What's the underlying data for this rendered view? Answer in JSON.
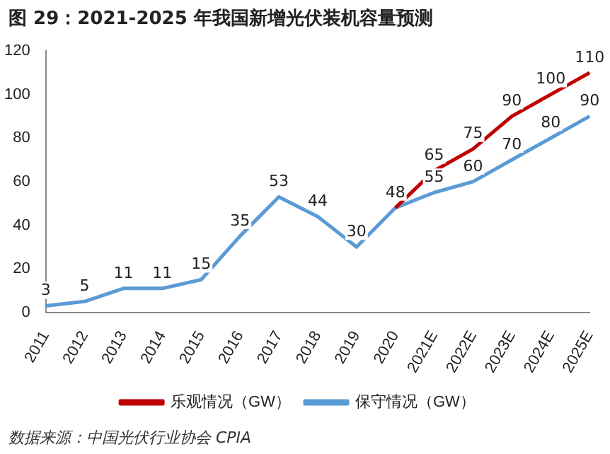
{
  "chart_data": {
    "type": "line",
    "title": "图 29：2021-2025 年我国新增光伏装机容量预测",
    "categories": [
      "2011",
      "2012",
      "2013",
      "2014",
      "2015",
      "2016",
      "2017",
      "2018",
      "2019",
      "2020",
      "2021E",
      "2022E",
      "2023E",
      "2024E",
      "2025E"
    ],
    "series": [
      {
        "name": "乐观情况（GW）",
        "color": "#c00000",
        "values": [
          null,
          null,
          null,
          null,
          null,
          null,
          null,
          null,
          null,
          48,
          65,
          75,
          90,
          100,
          110
        ],
        "value_labels": [
          null,
          null,
          null,
          null,
          null,
          null,
          null,
          null,
          null,
          null,
          "65",
          "75",
          "90",
          "100",
          "110"
        ]
      },
      {
        "name": "保守情况（GW）",
        "color": "#5b9bd5",
        "values": [
          3,
          5,
          11,
          11,
          15,
          35,
          53,
          44,
          30,
          48,
          55,
          60,
          70,
          80,
          90
        ],
        "value_labels": [
          "3",
          "5",
          "11",
          "11",
          "15",
          "35",
          "53",
          "44",
          "30",
          "48",
          "55",
          "60",
          "70",
          "80",
          "90"
        ]
      }
    ],
    "ylim": [
      0,
      120
    ],
    "yticks": [
      0,
      20,
      40,
      60,
      80,
      100,
      120
    ],
    "grid": false,
    "legend": "bottom",
    "marker": "none",
    "line_style": "solid",
    "annotations": [
      "数据来源：中国光伏行业协会 CPIA"
    ]
  }
}
